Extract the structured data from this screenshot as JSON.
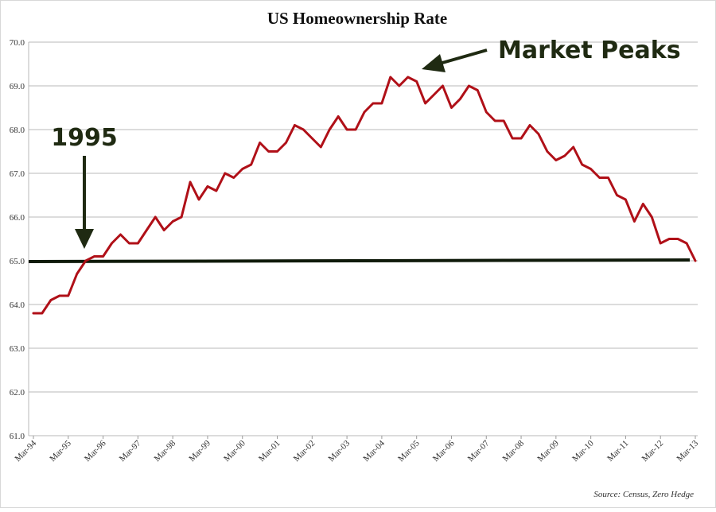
{
  "chart_data": {
    "type": "line",
    "title": "US Homeownership Rate",
    "xlabel": "",
    "ylabel": "",
    "ylim": [
      61.0,
      70.0
    ],
    "y_ticks": [
      "61.0",
      "62.0",
      "63.0",
      "64.0",
      "65.0",
      "66.0",
      "67.0",
      "68.0",
      "69.0",
      "70.0"
    ],
    "x_tick_labels": [
      "Mar-94",
      "Mar-95",
      "Mar-96",
      "Mar-97",
      "Mar-98",
      "Mar-99",
      "Mar-00",
      "Mar-01",
      "Mar-02",
      "Mar-03",
      "Mar-04",
      "Mar-05",
      "Mar-06",
      "Mar-07",
      "Mar-08",
      "Mar-09",
      "Mar-10",
      "Mar-11",
      "Mar-12",
      "Mar-13"
    ],
    "grid": true,
    "series": [
      {
        "color": "#b01018",
        "values": [
          63.8,
          63.8,
          64.1,
          64.2,
          64.2,
          64.7,
          65.0,
          65.1,
          65.1,
          65.4,
          65.6,
          65.4,
          65.4,
          65.7,
          66.0,
          65.7,
          65.9,
          66.0,
          66.8,
          66.4,
          66.7,
          66.6,
          67.0,
          66.9,
          67.1,
          67.2,
          67.7,
          67.5,
          67.5,
          67.7,
          68.1,
          68.0,
          67.8,
          67.6,
          68.0,
          68.3,
          68.0,
          68.0,
          68.4,
          68.6,
          68.6,
          69.2,
          69.0,
          69.2,
          69.1,
          68.6,
          68.8,
          69.0,
          68.5,
          68.7,
          69.0,
          68.9,
          68.4,
          68.2,
          68.2,
          67.8,
          67.8,
          68.1,
          67.9,
          67.5,
          67.3,
          67.4,
          67.6,
          67.2,
          67.1,
          66.9,
          66.9,
          66.5,
          66.4,
          65.9,
          66.3,
          66.0,
          65.4,
          65.5,
          65.5,
          65.4,
          65.0
        ]
      }
    ],
    "reference_line": {
      "value": 65.0,
      "color": "#0f1a0a"
    },
    "annotations": [
      {
        "text": "1995",
        "arrow": "down",
        "x_index": 6,
        "y": 65.0
      },
      {
        "text": "Market Peaks",
        "arrow": "left",
        "x_index": 44,
        "y": 69.1
      }
    ],
    "source": "Source: Census,  Zero Hedge"
  }
}
